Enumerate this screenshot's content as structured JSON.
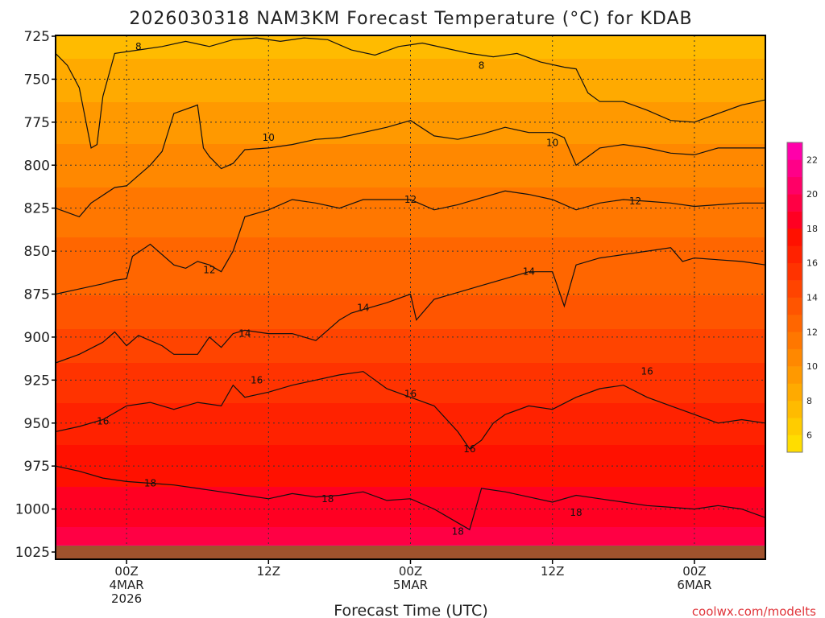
{
  "chart_data": {
    "type": "heatmap",
    "title": "2026030318 NAM3KM Forecast Temperature (°C) for KDAB",
    "xlabel": "Forecast Time (UTC)",
    "ylabel": "",
    "credit": "coolwx.com/modelts",
    "y_ticks": [
      "725",
      "750",
      "775",
      "800",
      "825",
      "850",
      "875",
      "900",
      "925",
      "950",
      "975",
      "1000",
      "1025"
    ],
    "y_range_hpa": [
      725,
      1025
    ],
    "x_range_hours": [
      -6,
      54
    ],
    "x_ticks": [
      {
        "hour": 0,
        "lines": [
          "00Z",
          "4MAR",
          "2026"
        ]
      },
      {
        "hour": 12,
        "lines": [
          "12Z"
        ]
      },
      {
        "hour": 24,
        "lines": [
          "00Z",
          "5MAR"
        ]
      },
      {
        "hour": 36,
        "lines": [
          "12Z"
        ]
      },
      {
        "hour": 48,
        "lines": [
          "00Z",
          "6MAR"
        ]
      }
    ],
    "colorbar": {
      "ticks": [
        "6",
        "8",
        "10",
        "12",
        "14",
        "16",
        "18",
        "20",
        "22"
      ],
      "levels": [
        5,
        6,
        7,
        8,
        9,
        10,
        11,
        12,
        13,
        14,
        15,
        16,
        17,
        18,
        19,
        20,
        21,
        22,
        23
      ],
      "colors": [
        "#ffdd00",
        "#ffcc00",
        "#ffbb00",
        "#ffaa00",
        "#ff9900",
        "#ff8800",
        "#ff7700",
        "#ff6600",
        "#ff5500",
        "#ff4400",
        "#ff3300",
        "#ff2200",
        "#ff1100",
        "#ff0022",
        "#ff0044",
        "#ff0066",
        "#ff0088",
        "#ff00aa"
      ]
    },
    "temperature_profile": [
      {
        "hpa": 725,
        "temp_c": 7.5
      },
      {
        "hpa": 775,
        "temp_c": 9.5
      },
      {
        "hpa": 825,
        "temp_c": 11.5
      },
      {
        "hpa": 875,
        "temp_c": 13.0
      },
      {
        "hpa": 925,
        "temp_c": 15.5
      },
      {
        "hpa": 975,
        "temp_c": 17.5
      },
      {
        "hpa": 1010,
        "temp_c": 19.0
      },
      {
        "hpa": 1025,
        "temp_c": 20.5
      }
    ],
    "contours": [
      {
        "level": 8,
        "label": "8",
        "points": [
          [
            -6,
            735
          ],
          [
            -5,
            742
          ],
          [
            -4,
            755
          ],
          [
            -3,
            790
          ],
          [
            -2.5,
            788
          ],
          [
            -2,
            760
          ],
          [
            -1,
            735
          ],
          [
            1,
            733
          ],
          [
            3,
            731
          ],
          [
            5,
            728
          ],
          [
            7,
            731
          ],
          [
            9,
            727
          ],
          [
            11,
            726
          ],
          [
            13,
            728
          ],
          [
            15,
            726
          ],
          [
            17,
            727
          ],
          [
            19,
            733
          ],
          [
            21,
            736
          ],
          [
            23,
            731
          ],
          [
            25,
            729
          ],
          [
            27,
            732
          ],
          [
            29,
            735
          ],
          [
            31,
            737
          ],
          [
            33,
            735
          ],
          [
            35,
            740
          ],
          [
            37,
            743
          ],
          [
            38,
            744
          ],
          [
            39,
            758
          ],
          [
            40,
            763
          ],
          [
            42,
            763
          ],
          [
            44,
            768
          ],
          [
            46,
            774
          ],
          [
            48,
            775
          ],
          [
            50,
            770
          ],
          [
            52,
            765
          ],
          [
            54,
            762
          ]
        ],
        "labels": [
          [
            1,
            731
          ],
          [
            30,
            742
          ]
        ]
      },
      {
        "level": 10,
        "label": "10",
        "points": [
          [
            -6,
            825
          ],
          [
            -4,
            830
          ],
          [
            -3,
            822
          ],
          [
            -1,
            813
          ],
          [
            0,
            812
          ],
          [
            1,
            806
          ],
          [
            2,
            800
          ],
          [
            3,
            792
          ],
          [
            4,
            770
          ],
          [
            6,
            765
          ],
          [
            6.5,
            790
          ],
          [
            7,
            795
          ],
          [
            8,
            802
          ],
          [
            9,
            799
          ],
          [
            10,
            791
          ],
          [
            12,
            790
          ],
          [
            14,
            788
          ],
          [
            16,
            785
          ],
          [
            18,
            784
          ],
          [
            20,
            781
          ],
          [
            22,
            778
          ],
          [
            24,
            774
          ],
          [
            26,
            783
          ],
          [
            28,
            785
          ],
          [
            30,
            782
          ],
          [
            32,
            778
          ],
          [
            34,
            781
          ],
          [
            36,
            781
          ],
          [
            37,
            784
          ],
          [
            38,
            800
          ],
          [
            39,
            795
          ],
          [
            40,
            790
          ],
          [
            42,
            788
          ],
          [
            44,
            790
          ],
          [
            46,
            793
          ],
          [
            48,
            794
          ],
          [
            50,
            790
          ],
          [
            52,
            790
          ],
          [
            54,
            790
          ]
        ],
        "labels": [
          [
            12,
            784
          ],
          [
            36,
            787
          ]
        ]
      },
      {
        "level": 12,
        "label": "12",
        "points": [
          [
            -6,
            875
          ],
          [
            -4,
            872
          ],
          [
            -2,
            869
          ],
          [
            -1,
            867
          ],
          [
            0,
            866
          ],
          [
            0.5,
            853
          ],
          [
            2,
            846
          ],
          [
            4,
            858
          ],
          [
            5,
            860
          ],
          [
            6,
            856
          ],
          [
            7,
            858
          ],
          [
            8,
            862
          ],
          [
            9,
            850
          ],
          [
            10,
            830
          ],
          [
            12,
            826
          ],
          [
            14,
            820
          ],
          [
            16,
            822
          ],
          [
            18,
            825
          ],
          [
            20,
            820
          ],
          [
            22,
            820
          ],
          [
            24,
            820
          ],
          [
            26,
            826
          ],
          [
            28,
            823
          ],
          [
            30,
            819
          ],
          [
            32,
            815
          ],
          [
            34,
            817
          ],
          [
            36,
            820
          ],
          [
            38,
            826
          ],
          [
            40,
            822
          ],
          [
            42,
            820
          ],
          [
            44,
            821
          ],
          [
            46,
            822
          ],
          [
            48,
            824
          ],
          [
            50,
            823
          ],
          [
            52,
            822
          ],
          [
            54,
            822
          ]
        ],
        "labels": [
          [
            7,
            861
          ],
          [
            24,
            820
          ],
          [
            43,
            821
          ]
        ]
      },
      {
        "level": 14,
        "label": "14",
        "points": [
          [
            -6,
            915
          ],
          [
            -4,
            910
          ],
          [
            -2,
            903
          ],
          [
            -1,
            897
          ],
          [
            0,
            905
          ],
          [
            1,
            899
          ],
          [
            2,
            902
          ],
          [
            3,
            905
          ],
          [
            4,
            910
          ],
          [
            6,
            910
          ],
          [
            7,
            900
          ],
          [
            8,
            906
          ],
          [
            9,
            898
          ],
          [
            10,
            896
          ],
          [
            12,
            898
          ],
          [
            14,
            898
          ],
          [
            16,
            902
          ],
          [
            17,
            896
          ],
          [
            18,
            890
          ],
          [
            19,
            886
          ],
          [
            20,
            884
          ],
          [
            22,
            880
          ],
          [
            24,
            875
          ],
          [
            24.5,
            890
          ],
          [
            26,
            878
          ],
          [
            28,
            874
          ],
          [
            30,
            870
          ],
          [
            32,
            866
          ],
          [
            34,
            862
          ],
          [
            36,
            862
          ],
          [
            37,
            882
          ],
          [
            38,
            858
          ],
          [
            40,
            854
          ],
          [
            42,
            852
          ],
          [
            44,
            850
          ],
          [
            46,
            848
          ],
          [
            47,
            856
          ],
          [
            48,
            854
          ],
          [
            50,
            855
          ],
          [
            52,
            856
          ],
          [
            54,
            858
          ]
        ],
        "labels": [
          [
            10,
            898
          ],
          [
            20,
            883
          ],
          [
            34,
            862
          ]
        ]
      },
      {
        "level": 16,
        "label": "16",
        "points": [
          [
            -6,
            955
          ],
          [
            -4,
            952
          ],
          [
            -2,
            948
          ],
          [
            0,
            940
          ],
          [
            2,
            938
          ],
          [
            4,
            942
          ],
          [
            6,
            938
          ],
          [
            8,
            940
          ],
          [
            9,
            928
          ],
          [
            10,
            935
          ],
          [
            12,
            932
          ],
          [
            14,
            928
          ],
          [
            16,
            925
          ],
          [
            18,
            922
          ],
          [
            20,
            920
          ],
          [
            22,
            930
          ],
          [
            24,
            935
          ],
          [
            26,
            940
          ],
          [
            28,
            955
          ],
          [
            29,
            965
          ],
          [
            30,
            960
          ],
          [
            31,
            950
          ],
          [
            32,
            945
          ],
          [
            34,
            940
          ],
          [
            36,
            942
          ],
          [
            38,
            935
          ],
          [
            40,
            930
          ],
          [
            42,
            928
          ],
          [
            44,
            935
          ],
          [
            46,
            940
          ],
          [
            48,
            945
          ],
          [
            50,
            950
          ],
          [
            52,
            948
          ],
          [
            54,
            950
          ]
        ],
        "labels": [
          [
            -2,
            949
          ],
          [
            11,
            925
          ],
          [
            24,
            933
          ],
          [
            29,
            965
          ],
          [
            44,
            920
          ]
        ]
      },
      {
        "level": 18,
        "label": "18",
        "points": [
          [
            -6,
            975
          ],
          [
            -4,
            978
          ],
          [
            -2,
            982
          ],
          [
            0,
            984
          ],
          [
            2,
            985
          ],
          [
            4,
            986
          ],
          [
            6,
            988
          ],
          [
            8,
            990
          ],
          [
            10,
            992
          ],
          [
            12,
            994
          ],
          [
            14,
            991
          ],
          [
            16,
            993
          ],
          [
            18,
            992
          ],
          [
            20,
            990
          ],
          [
            22,
            995
          ],
          [
            24,
            994
          ],
          [
            26,
            1000
          ],
          [
            28,
            1008
          ],
          [
            29,
            1012
          ],
          [
            30,
            988
          ],
          [
            32,
            990
          ],
          [
            34,
            993
          ],
          [
            36,
            996
          ],
          [
            38,
            992
          ],
          [
            40,
            994
          ],
          [
            42,
            996
          ],
          [
            44,
            998
          ],
          [
            46,
            999
          ],
          [
            48,
            1000
          ],
          [
            50,
            998
          ],
          [
            52,
            1000
          ],
          [
            54,
            1005
          ]
        ],
        "labels": [
          [
            2,
            985
          ],
          [
            17,
            994
          ],
          [
            28,
            1013
          ],
          [
            38,
            1002
          ]
        ]
      }
    ]
  }
}
